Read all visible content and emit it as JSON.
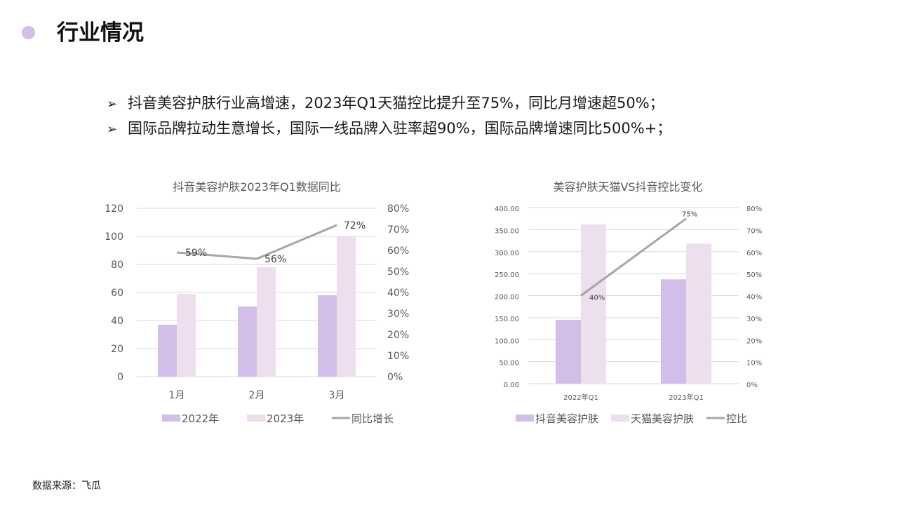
{
  "header": {
    "title": "行业情况"
  },
  "bullets": [
    "抖音美容护肤行业高增速，2023年Q1天猫控比提升至75%，同比月增速超50%；",
    "国际品牌拉动生意增长，国际一线品牌入驻率超90%，国际品牌增速同比500%+；"
  ],
  "bullet_icon": "arrow-right-icon",
  "source": "数据来源：飞瓜",
  "colors": {
    "accent_dot": "#d3bde9",
    "bar_primary": "#d3bde9",
    "bar_secondary": "#eddfed",
    "line": "#a6a6a6"
  },
  "chart_data": [
    {
      "type": "bar",
      "title": "抖音美容护肤2023年Q1数据同比",
      "categories": [
        "1月",
        "2月",
        "3月"
      ],
      "series": [
        {
          "name": "2022年",
          "type": "bar",
          "axis": "left",
          "values": [
            37,
            50,
            58
          ]
        },
        {
          "name": "2023年",
          "type": "bar",
          "axis": "left",
          "values": [
            59,
            78,
            100
          ]
        },
        {
          "name": "同比增长",
          "type": "line",
          "axis": "right",
          "values": [
            0.59,
            0.56,
            0.72
          ],
          "labels": [
            "59%",
            "56%",
            "72%"
          ]
        }
      ],
      "ylim": [
        0,
        120
      ],
      "yticks": [
        "0",
        "20",
        "40",
        "60",
        "80",
        "100",
        "120"
      ],
      "y2lim": [
        0,
        0.8
      ],
      "y2ticks": [
        "0%",
        "10%",
        "20%",
        "30%",
        "40%",
        "50%",
        "60%",
        "70%",
        "80%"
      ],
      "legend": "bottom",
      "grid": true
    },
    {
      "type": "bar",
      "title": "美容护肤天猫VS抖音控比变化",
      "categories": [
        "2022年Q1",
        "2023年Q1"
      ],
      "series": [
        {
          "name": "抖音美容护肤",
          "type": "bar",
          "axis": "left",
          "values": [
            145,
            237
          ]
        },
        {
          "name": "天猫美容护肤",
          "type": "bar",
          "axis": "left",
          "values": [
            362,
            318
          ]
        },
        {
          "name": "控比",
          "type": "line",
          "axis": "right",
          "values": [
            0.4,
            0.75
          ],
          "labels": [
            "40%",
            "75%"
          ]
        }
      ],
      "ylim": [
        0,
        400
      ],
      "yticks": [
        "0.00",
        "50.00",
        "100.00",
        "150.00",
        "200.00",
        "250.00",
        "300.00",
        "350.00",
        "400.00"
      ],
      "y2lim": [
        0,
        0.8
      ],
      "y2ticks": [
        "0%",
        "10%",
        "20%",
        "30%",
        "40%",
        "50%",
        "60%",
        "70%",
        "80%"
      ],
      "legend": "bottom",
      "grid": true
    }
  ]
}
